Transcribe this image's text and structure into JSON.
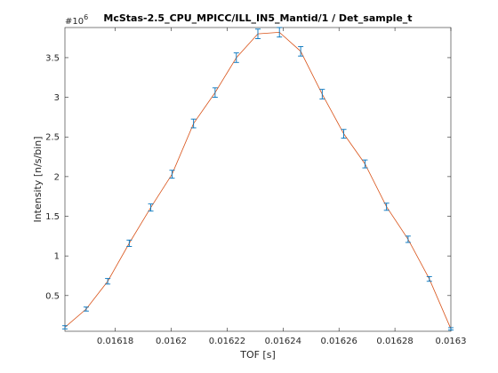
{
  "chart_data": {
    "type": "line",
    "title": "McStas-2.5_CPU_MPICC/ILL_IN5_Mantid/1 / Det_sample_t",
    "xlabel": "TOF [s]",
    "ylabel": "Intensity [n/s/bin]",
    "y_exponent_label": "#10",
    "y_exponent_power": "6",
    "y_multiplier": 1000000,
    "xlim": [
      0.016162,
      0.0163
    ],
    "ylim": [
      50000,
      3880000
    ],
    "x_ticks": [
      0.01618,
      0.0162,
      0.01622,
      0.01624,
      0.01626,
      0.01628,
      0.0163
    ],
    "x_tick_labels": [
      "0.01618",
      "0.0162",
      "0.01622",
      "0.01624",
      "0.01626",
      "0.01628",
      "0.0163"
    ],
    "y_ticks": [
      500000,
      1000000,
      1500000,
      2000000,
      2500000,
      3000000,
      3500000
    ],
    "y_tick_labels": [
      "0.5",
      "1",
      "1.5",
      "2",
      "2.5",
      "3",
      "3.5"
    ],
    "grid": false,
    "series": [
      {
        "line_color": "#d95319",
        "errorbar_color": "#0072bd",
        "x": [
          0.016162,
          0.0161696,
          0.0161773,
          0.016185,
          0.0161927,
          0.0162003,
          0.016208,
          0.0162157,
          0.0162233,
          0.016231,
          0.0162387,
          0.0162463,
          0.016254,
          0.0162617,
          0.0162693,
          0.016277,
          0.0162847,
          0.0162923,
          0.0163
        ],
        "y": [
          100000,
          330000,
          680000,
          1160000,
          1610000,
          2030000,
          2670000,
          3060000,
          3500000,
          3800000,
          3820000,
          3580000,
          3040000,
          2540000,
          2160000,
          1620000,
          1210000,
          710000,
          80000
        ],
        "err": [
          20000,
          25000,
          35000,
          40000,
          45000,
          50000,
          55000,
          60000,
          60000,
          60000,
          60000,
          60000,
          60000,
          55000,
          50000,
          45000,
          40000,
          30000,
          15000
        ]
      }
    ]
  }
}
